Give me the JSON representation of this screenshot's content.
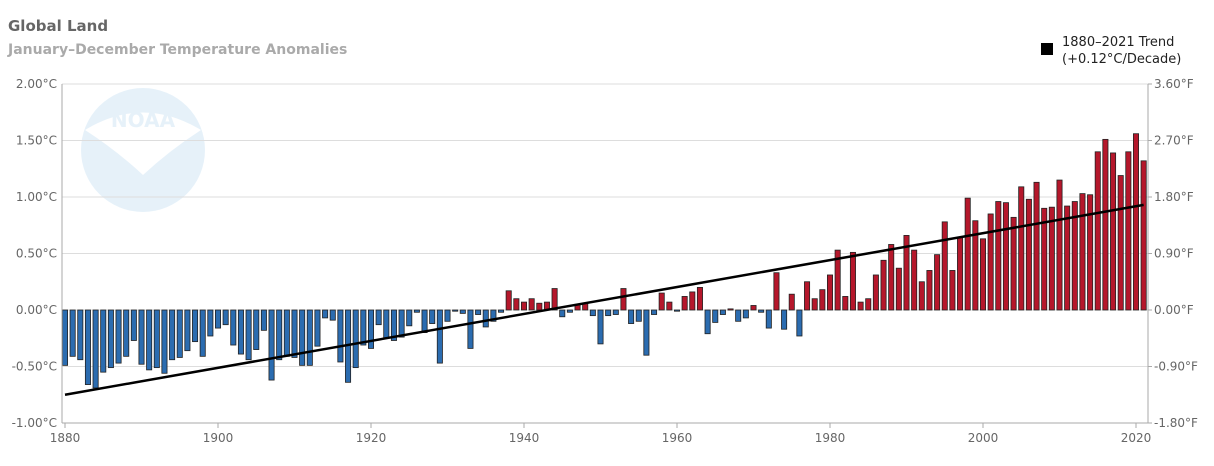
{
  "chart_data": {
    "type": "bar",
    "title": "Global Land",
    "subtitle": "January–December Temperature Anomalies",
    "ylim": [
      -1.0,
      2.0
    ],
    "xlim": [
      1880,
      2021
    ],
    "grid": true,
    "legend_position": "top-right",
    "y_ticks_left": [
      "2.00°C",
      "1.50°C",
      "1.00°C",
      "0.50°C",
      "0.00°C",
      "-0.50°C",
      "-1.00°C"
    ],
    "y_ticks_right": [
      "3.60°F",
      "2.70°F",
      "1.80°F",
      "0.90°F",
      "0.00°F",
      "-0.90°F",
      "-1.80°F"
    ],
    "x_ticks": [
      "1880",
      "1900",
      "1920",
      "1940",
      "1960",
      "1980",
      "2000",
      "2020"
    ],
    "colors": {
      "positive": "#b5172b",
      "negative": "#2b6cb0",
      "trend": "#000000",
      "grid": "#dddddd"
    },
    "trend": {
      "name": "1880–2021 Trend",
      "rate": "(+0.12°C/Decade)",
      "start": [
        1880,
        -0.75
      ],
      "end": [
        2021,
        0.93
      ]
    },
    "x": [
      1880,
      1881,
      1882,
      1883,
      1884,
      1885,
      1886,
      1887,
      1888,
      1889,
      1890,
      1891,
      1892,
      1893,
      1894,
      1895,
      1896,
      1897,
      1898,
      1899,
      1900,
      1901,
      1902,
      1903,
      1904,
      1905,
      1906,
      1907,
      1908,
      1909,
      1910,
      1911,
      1912,
      1913,
      1914,
      1915,
      1916,
      1917,
      1918,
      1919,
      1920,
      1921,
      1922,
      1923,
      1924,
      1925,
      1926,
      1927,
      1928,
      1929,
      1930,
      1931,
      1932,
      1933,
      1934,
      1935,
      1936,
      1937,
      1938,
      1939,
      1940,
      1941,
      1942,
      1943,
      1944,
      1945,
      1946,
      1947,
      1948,
      1949,
      1950,
      1951,
      1952,
      1953,
      1954,
      1955,
      1956,
      1957,
      1958,
      1959,
      1960,
      1961,
      1962,
      1963,
      1964,
      1965,
      1966,
      1967,
      1968,
      1969,
      1970,
      1971,
      1972,
      1973,
      1974,
      1975,
      1976,
      1977,
      1978,
      1979,
      1980,
      1981,
      1982,
      1983,
      1984,
      1985,
      1986,
      1987,
      1988,
      1989,
      1990,
      1991,
      1992,
      1993,
      1994,
      1995,
      1996,
      1997,
      1998,
      1999,
      2000,
      2001,
      2002,
      2003,
      2004,
      2005,
      2006,
      2007,
      2008,
      2009,
      2010,
      2011,
      2012,
      2013,
      2014,
      2015,
      2016,
      2017,
      2018,
      2019,
      2020,
      2021
    ],
    "values": [
      -0.49,
      -0.41,
      -0.44,
      -0.66,
      -0.69,
      -0.55,
      -0.51,
      -0.47,
      -0.41,
      -0.27,
      -0.48,
      -0.53,
      -0.51,
      -0.56,
      -0.44,
      -0.42,
      -0.36,
      -0.28,
      -0.41,
      -0.23,
      -0.16,
      -0.13,
      -0.31,
      -0.39,
      -0.44,
      -0.35,
      -0.18,
      -0.62,
      -0.44,
      -0.41,
      -0.42,
      -0.49,
      -0.49,
      -0.32,
      -0.07,
      -0.09,
      -0.46,
      -0.64,
      -0.51,
      -0.31,
      -0.34,
      -0.13,
      -0.25,
      -0.27,
      -0.24,
      -0.14,
      -0.02,
      -0.2,
      -0.12,
      -0.47,
      -0.1,
      -0.01,
      -0.03,
      -0.34,
      -0.04,
      -0.15,
      -0.1,
      -0.02,
      0.17,
      0.1,
      0.07,
      0.1,
      0.06,
      0.07,
      0.19,
      -0.06,
      -0.02,
      0.05,
      0.06,
      -0.05,
      -0.3,
      -0.05,
      -0.04,
      0.19,
      -0.12,
      -0.1,
      -0.4,
      -0.04,
      0.15,
      0.07,
      -0.01,
      0.12,
      0.16,
      0.2,
      -0.21,
      -0.11,
      -0.04,
      0.01,
      -0.1,
      -0.07,
      0.04,
      -0.02,
      -0.16,
      0.33,
      -0.17,
      0.14,
      -0.23,
      0.25,
      0.1,
      0.18,
      0.31,
      0.53,
      0.12,
      0.51,
      0.07,
      0.1,
      0.31,
      0.44,
      0.58,
      0.37,
      0.66,
      0.53,
      0.25,
      0.35,
      0.49,
      0.78,
      0.35,
      0.64,
      0.99,
      0.79,
      0.63,
      0.85,
      0.96,
      0.95,
      0.82,
      1.09,
      0.98,
      1.13,
      0.9,
      0.91,
      1.15,
      0.92,
      0.96,
      1.03,
      1.02,
      1.4,
      1.51,
      1.39,
      1.19,
      1.4,
      1.56,
      1.32
    ]
  },
  "logo": "NOAA"
}
